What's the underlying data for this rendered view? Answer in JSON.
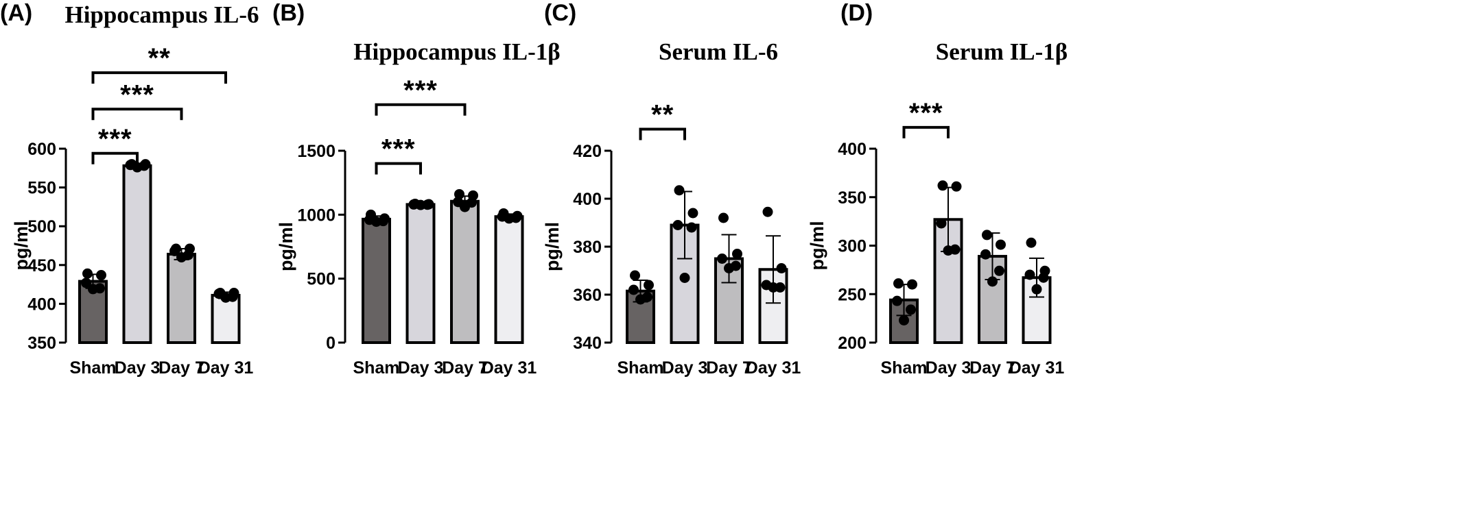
{
  "chart_data": [
    {
      "type": "bar",
      "panel": "(A)",
      "title": "Hippocampus IL-6",
      "xlabel": "",
      "ylabel": "pg/ml",
      "ylim": [
        350,
        600
      ],
      "yticks": [
        350,
        400,
        450,
        500,
        550,
        600
      ],
      "categories": [
        "Sham",
        "Day 3",
        "Day 7",
        "Day 31"
      ],
      "values": [
        429,
        578,
        464,
        411
      ],
      "errors": [
        9,
        3,
        7,
        4
      ],
      "bar_colors": [
        "#676363",
        "#d7d6dc",
        "#bebdbf",
        "#eeeef1"
      ],
      "points": [
        [
          439,
          437,
          427,
          420,
          419
        ],
        [
          580,
          580,
          579,
          578,
          576
        ],
        [
          471,
          471,
          468,
          463,
          460
        ],
        [
          414,
          414,
          413,
          409,
          408
        ]
      ],
      "significance": [
        {
          "from": 0,
          "to": 1,
          "label": "***",
          "y": 594
        },
        {
          "from": 0,
          "to": 2,
          "label": "***",
          "y": 651
        },
        {
          "from": 0,
          "to": 3,
          "label": "**",
          "y": 698
        }
      ]
    },
    {
      "type": "bar",
      "panel": "(B)",
      "title": "Hippocampus IL-1β",
      "xlabel": "",
      "ylabel": "pg/ml",
      "ylim": [
        0,
        1500
      ],
      "yticks": [
        0,
        500,
        1000,
        1500
      ],
      "categories": [
        "Sham",
        "Day 3",
        "Day 7",
        "Day 31"
      ],
      "values": [
        965,
        1080,
        1105,
        985
      ],
      "errors": [
        25,
        8,
        40,
        20
      ],
      "bar_colors": [
        "#676363",
        "#d7d6dc",
        "#bebdbf",
        "#eeeef1"
      ],
      "points": [
        [
          1000,
          970,
          960,
          950,
          945
        ],
        [
          1085,
          1082,
          1080,
          1078,
          1076
        ],
        [
          1160,
          1150,
          1100,
          1095,
          1060
        ],
        [
          1010,
          990,
          985,
          975,
          970
        ]
      ],
      "significance": [
        {
          "from": 0,
          "to": 1,
          "label": "***",
          "y": 1400
        },
        {
          "from": 0,
          "to": 2,
          "label": "***",
          "y": 1860
        }
      ]
    },
    {
      "type": "bar",
      "panel": "(C)",
      "title": "Serum IL-6",
      "xlabel": "",
      "ylabel": "pg/ml",
      "ylim": [
        340,
        420
      ],
      "yticks": [
        340,
        360,
        380,
        400,
        420
      ],
      "categories": [
        "Sham",
        "Day 3",
        "Day 7",
        "Day 31"
      ],
      "values": [
        361.5,
        389,
        375,
        370.5
      ],
      "errors": [
        4.5,
        14,
        10,
        14
      ],
      "bar_colors": [
        "#676363",
        "#d7d6dc",
        "#bebdbf",
        "#eeeef1"
      ],
      "points": [
        [
          368,
          364,
          362,
          359,
          358
        ],
        [
          403.5,
          394,
          389,
          388,
          367
        ],
        [
          392,
          377,
          375,
          372,
          371
        ],
        [
          394.5,
          371,
          364,
          363,
          363
        ]
      ],
      "significance": [
        {
          "from": 0,
          "to": 1,
          "label": "**",
          "y": 429
        }
      ]
    },
    {
      "type": "bar",
      "panel": "(D)",
      "title": "Serum IL-1β",
      "xlabel": "",
      "ylabel": "pg/ml",
      "ylim": [
        200,
        400
      ],
      "yticks": [
        200,
        250,
        300,
        350,
        400
      ],
      "categories": [
        "Sham",
        "Day 3",
        "Day 7",
        "Day 31"
      ],
      "values": [
        244,
        327,
        289,
        267
      ],
      "errors": [
        16,
        33,
        24,
        20
      ],
      "bar_colors": [
        "#676363",
        "#d7d6dc",
        "#bebdbf",
        "#eeeef1"
      ],
      "points": [
        [
          261,
          260,
          243,
          234,
          223
        ],
        [
          362,
          361,
          323,
          296,
          295
        ],
        [
          311,
          301,
          291,
          274,
          263
        ],
        [
          303,
          274,
          270,
          267,
          255
        ]
      ],
      "significance": [
        {
          "from": 0,
          "to": 1,
          "label": "***",
          "y": 422
        }
      ]
    }
  ]
}
